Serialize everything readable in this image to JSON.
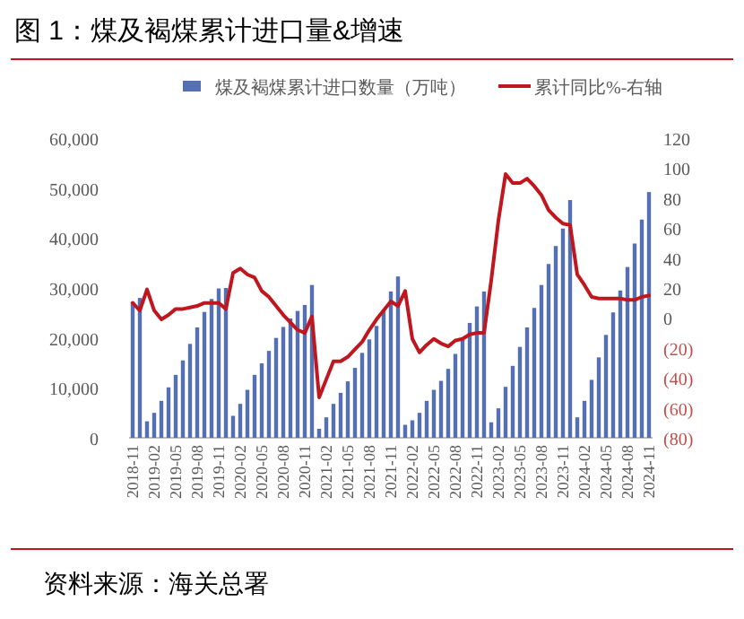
{
  "chart_data": {
    "type": "bar",
    "title": "图 1：煤及褐煤累计进口量&增速",
    "categories": [
      "2018-11",
      null,
      null,
      "2019-02",
      null,
      null,
      "2019-05",
      null,
      null,
      "2019-08",
      null,
      null,
      "2019-11",
      null,
      null,
      "2020-02",
      null,
      null,
      "2020-05",
      null,
      null,
      "2020-08",
      null,
      null,
      "2020-11",
      null,
      null,
      "2021-02",
      null,
      null,
      "2021-05",
      null,
      null,
      "2021-08",
      null,
      null,
      "2021-11",
      null,
      null,
      "2022-02",
      null,
      null,
      "2022-05",
      null,
      null,
      "2022-08",
      null,
      null,
      "2022-11",
      null,
      null,
      "2023-02",
      null,
      null,
      "2023-05",
      null,
      null,
      "2023-08",
      null,
      null,
      "2023-11",
      null,
      null,
      "2024-02",
      null,
      null,
      "2024-05",
      null,
      null,
      "2024-08",
      null,
      null,
      "2024-11"
    ],
    "series": [
      {
        "name": "煤及褐煤累计进口数量（万吨）",
        "color": "#5470b0",
        "values": [
          27200,
          28000,
          3300,
          5000,
          7400,
          10100,
          12600,
          15500,
          18800,
          22100,
          25200,
          27800,
          29900,
          30000,
          4400,
          6800,
          9600,
          12600,
          14900,
          17400,
          20000,
          22200,
          23900,
          25400,
          26600,
          30600,
          1800,
          4100,
          6800,
          9000,
          11300,
          14000,
          17000,
          19700,
          22400,
          25700,
          29300,
          32300,
          2600,
          3500,
          5000,
          7400,
          9600,
          11400,
          13800,
          16800,
          20000,
          23000,
          26300,
          29300,
          3100,
          5900,
          10200,
          14400,
          18200,
          22100,
          26000,
          30600,
          34800,
          38400,
          41900,
          47600,
          4100,
          7400,
          11600,
          16100,
          20600,
          25100,
          29500,
          34200,
          38900,
          43700,
          49200
        ]
      },
      {
        "name": "累计同比%-右轴",
        "type": "line",
        "axis": "y2",
        "color": "#c0161e",
        "values": [
          10,
          5,
          19,
          5,
          -1,
          2,
          6,
          6,
          7,
          8,
          10,
          10,
          10,
          6,
          30,
          33,
          29,
          27,
          18,
          14,
          8,
          2,
          -3,
          -8,
          -10,
          1,
          -53,
          -41,
          -29,
          -29,
          -26,
          -21,
          -16,
          -8,
          -1,
          5,
          11,
          8,
          18,
          -14,
          -23,
          -18,
          -14,
          -17,
          -19,
          -15,
          -14,
          -11,
          -10,
          -10,
          25,
          65,
          96,
          90,
          90,
          93,
          88,
          82,
          72,
          67,
          63,
          62,
          29,
          22,
          14,
          13,
          13,
          13,
          13,
          12,
          12,
          14,
          15
        ]
      }
    ],
    "ylim": [
      0,
      60000
    ],
    "yticks": [
      {
        "value": 0,
        "label": "0"
      },
      {
        "value": 10000,
        "label": "10,000"
      },
      {
        "value": 20000,
        "label": "20,000"
      },
      {
        "value": 30000,
        "label": "30,000"
      },
      {
        "value": 40000,
        "label": "40,000"
      },
      {
        "value": 50000,
        "label": "50,000"
      },
      {
        "value": 60000,
        "label": "60,000"
      }
    ],
    "y2lim": [
      -80,
      120
    ],
    "y2ticks": [
      {
        "value": -80,
        "label": "(80)"
      },
      {
        "value": -60,
        "label": "(60)"
      },
      {
        "value": -40,
        "label": "(40)"
      },
      {
        "value": -20,
        "label": "(20)"
      },
      0,
      20,
      40,
      60,
      80,
      100,
      120
    ],
    "legend": "top",
    "grid": false,
    "annotations": [
      "资料来源：海关总署"
    ]
  }
}
